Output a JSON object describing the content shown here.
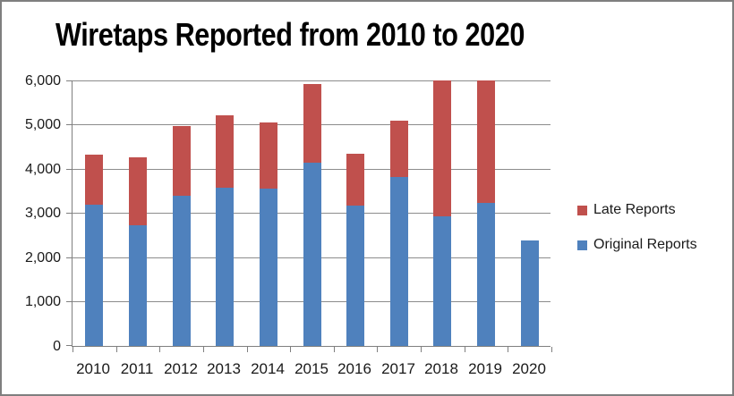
{
  "chart_data": {
    "type": "bar",
    "stacked": true,
    "title": "Wiretaps Reported from 2010 to 2020",
    "categories": [
      "2010",
      "2011",
      "2012",
      "2013",
      "2014",
      "2015",
      "2016",
      "2017",
      "2018",
      "2019",
      "2020"
    ],
    "series": [
      {
        "name": "Original Reports",
        "color": "#4F81BD",
        "values": [
          3194,
          2732,
          3395,
          3576,
          3554,
          4148,
          3168,
          3813,
          2937,
          3225,
          2377
        ]
      },
      {
        "name": "Late Reports",
        "color": "#C0504D",
        "values": [
          1140,
          1540,
          1570,
          1630,
          1490,
          1770,
          1180,
          1270,
          3063,
          2775,
          0
        ]
      }
    ],
    "legend_items": [
      {
        "label": "Late Reports",
        "color": "#C0504D"
      },
      {
        "label": "Original Reports",
        "color": "#4F81BD"
      }
    ],
    "legend_position": "right",
    "grid": true,
    "y_axis": {
      "min": 0,
      "max": 6000,
      "tick_interval": 1000,
      "tick_labels": [
        "0",
        "1,000",
        "2,000",
        "3,000",
        "4,000",
        "5,000",
        "6,000"
      ]
    },
    "x_axis": {
      "tick_labels": [
        "2010",
        "2011",
        "2012",
        "2013",
        "2014",
        "2015",
        "2016",
        "2017",
        "2018",
        "2019",
        "2020"
      ]
    },
    "note": "Stacked totals for 2018 and 2019 exceed the axis maximum and are clipped at 6,000."
  },
  "colors": {
    "background": "#FFFFFF",
    "border": "#7F7F7F",
    "gridline": "#8C8C8C",
    "axis": "#7F7F7F",
    "text": "#1A1A1A"
  }
}
